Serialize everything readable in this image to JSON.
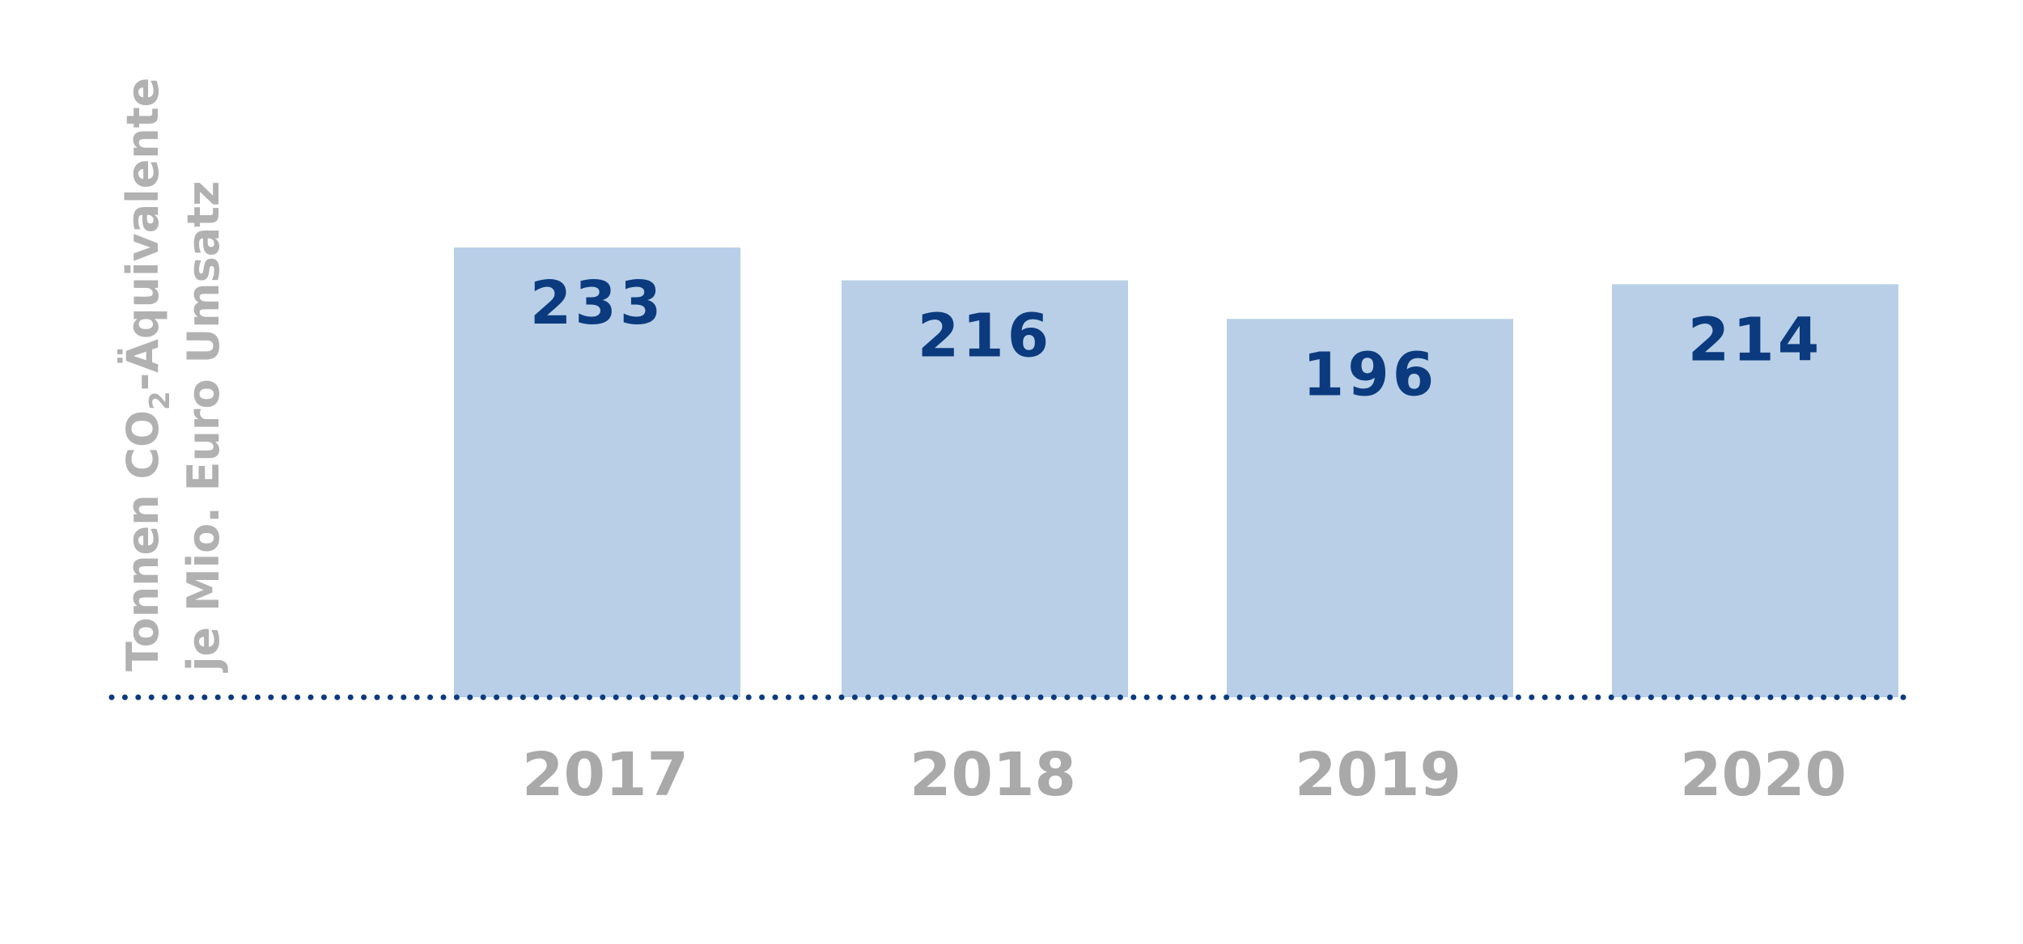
{
  "chart_data": {
    "type": "bar",
    "categories": [
      "2017",
      "2018",
      "2019",
      "2020"
    ],
    "values": [
      233,
      216,
      196,
      214
    ],
    "value_labels": [
      "233",
      "216",
      "196",
      "214"
    ],
    "title": "",
    "xlabel": "",
    "ylabel": {
      "line1_prefix": "Tonnen CO",
      "line1_subscript": "2",
      "line1_suffix": "-Äquivalente",
      "line2": "je Mio. Euro Umsatz"
    },
    "ylim": [
      0,
      233
    ],
    "grid": false,
    "legend": "none",
    "baseline_style": "dotted"
  },
  "colors": {
    "bar": "#b8cfe7",
    "value_label": "#0b3a7e",
    "tick_label": "#a9a9a9",
    "axis_label": "#b1b1b1",
    "baseline": "#0b3a7e",
    "background": "#ffffff"
  }
}
